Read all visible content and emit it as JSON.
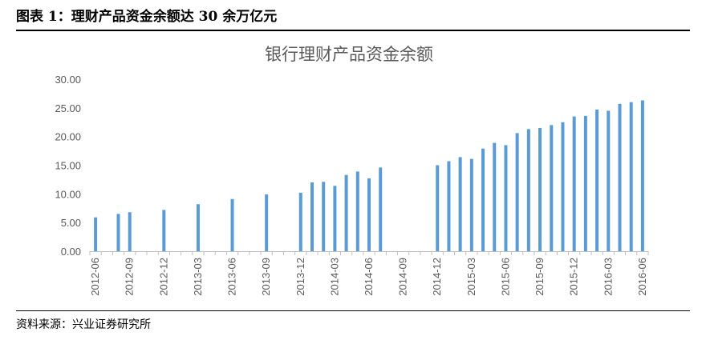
{
  "figure_caption": "图表 1：理财产品资金余额达 30 余万亿元",
  "source_note": "资料来源：兴业证券研究所",
  "colors": {
    "bar": "#5b9bd5",
    "axis": "#bfbfbf",
    "text": "#595959"
  },
  "chart_data": {
    "type": "bar",
    "title": "银行理财产品资金余额",
    "xlabel": "",
    "ylabel": "",
    "ylim": [
      0,
      30
    ],
    "yticks": [
      "0.00",
      "5.00",
      "10.00",
      "15.00",
      "20.00",
      "25.00",
      "30.00"
    ],
    "grid": false,
    "legend": "none",
    "categories": [
      "2012-06",
      "2012-07",
      "2012-08",
      "2012-09",
      "2012-10",
      "2012-11",
      "2012-12",
      "2013-01",
      "2013-02",
      "2013-03",
      "2013-04",
      "2013-05",
      "2013-06",
      "2013-07",
      "2013-08",
      "2013-09",
      "2013-10",
      "2013-11",
      "2013-12",
      "2014-01",
      "2014-02",
      "2014-03",
      "2014-04",
      "2014-05",
      "2014-06",
      "2014-07",
      "2014-08",
      "2014-09",
      "2014-10",
      "2014-11",
      "2014-12",
      "2015-01",
      "2015-02",
      "2015-03",
      "2015-04",
      "2015-05",
      "2015-06",
      "2015-07",
      "2015-08",
      "2015-09",
      "2015-10",
      "2015-11",
      "2015-12",
      "2016-01",
      "2016-02",
      "2016-03",
      "2016-04",
      "2016-05",
      "2016-06"
    ],
    "xtick_labels": [
      "2012-06",
      "2012-09",
      "2012-12",
      "2013-03",
      "2013-06",
      "2013-09",
      "2013-12",
      "2014-03",
      "2014-06",
      "2014-09",
      "2014-12",
      "2015-03",
      "2015-06",
      "2015-09",
      "2015-12",
      "2016-03",
      "2016-06"
    ],
    "values": [
      5.9,
      null,
      6.5,
      6.8,
      null,
      null,
      7.2,
      null,
      null,
      8.2,
      null,
      null,
      9.1,
      null,
      null,
      9.9,
      null,
      null,
      10.2,
      12.0,
      12.1,
      11.4,
      13.3,
      13.9,
      12.7,
      14.6,
      null,
      null,
      null,
      null,
      15.0,
      15.7,
      16.4,
      16.1,
      17.9,
      18.9,
      18.5,
      20.6,
      21.3,
      21.5,
      22.0,
      22.5,
      23.5,
      23.6,
      24.7,
      24.5,
      25.7,
      26.0,
      26.3
    ]
  }
}
